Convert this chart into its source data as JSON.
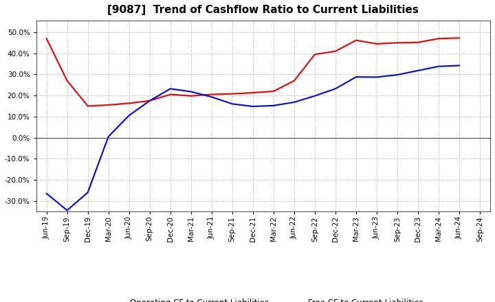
{
  "title": "[9087]  Trend of Cashflow Ratio to Current Liabilities",
  "x_labels": [
    "Jun-19",
    "Sep-19",
    "Dec-19",
    "Mar-20",
    "Jun-20",
    "Sep-20",
    "Dec-20",
    "Mar-21",
    "Jun-21",
    "Sep-21",
    "Dec-21",
    "Mar-22",
    "Jun-22",
    "Sep-22",
    "Dec-22",
    "Mar-23",
    "Jun-23",
    "Sep-23",
    "Dec-23",
    "Mar-24",
    "Jun-24",
    "Sep-24"
  ],
  "operating_cf": [
    0.47,
    0.27,
    0.15,
    0.155,
    0.163,
    0.175,
    0.205,
    0.198,
    0.205,
    0.208,
    0.213,
    0.22,
    0.27,
    0.395,
    0.41,
    0.462,
    0.445,
    0.45,
    0.452,
    0.47,
    0.473,
    null
  ],
  "free_cf": [
    -0.265,
    -0.345,
    -0.26,
    0.005,
    0.105,
    0.175,
    0.232,
    0.218,
    0.193,
    0.16,
    0.148,
    0.152,
    0.168,
    0.198,
    0.232,
    0.288,
    0.287,
    0.298,
    0.318,
    0.338,
    0.342,
    null
  ],
  "operating_color": "#dd1111",
  "free_color": "#1111cc",
  "ylim": [
    -0.35,
    0.555
  ],
  "yticks": [
    -0.3,
    -0.2,
    -0.1,
    0.0,
    0.1,
    0.2,
    0.3,
    0.4,
    0.5
  ],
  "legend_labels": [
    "Operating CF to Current Liabilities",
    "Free CF to Current Liabilities"
  ],
  "background_color": "#ffffff",
  "plot_bg_color": "#ffffff",
  "grid_color": "#999999",
  "title_fontsize": 11,
  "tick_fontsize": 7.5,
  "legend_fontsize": 8.5
}
